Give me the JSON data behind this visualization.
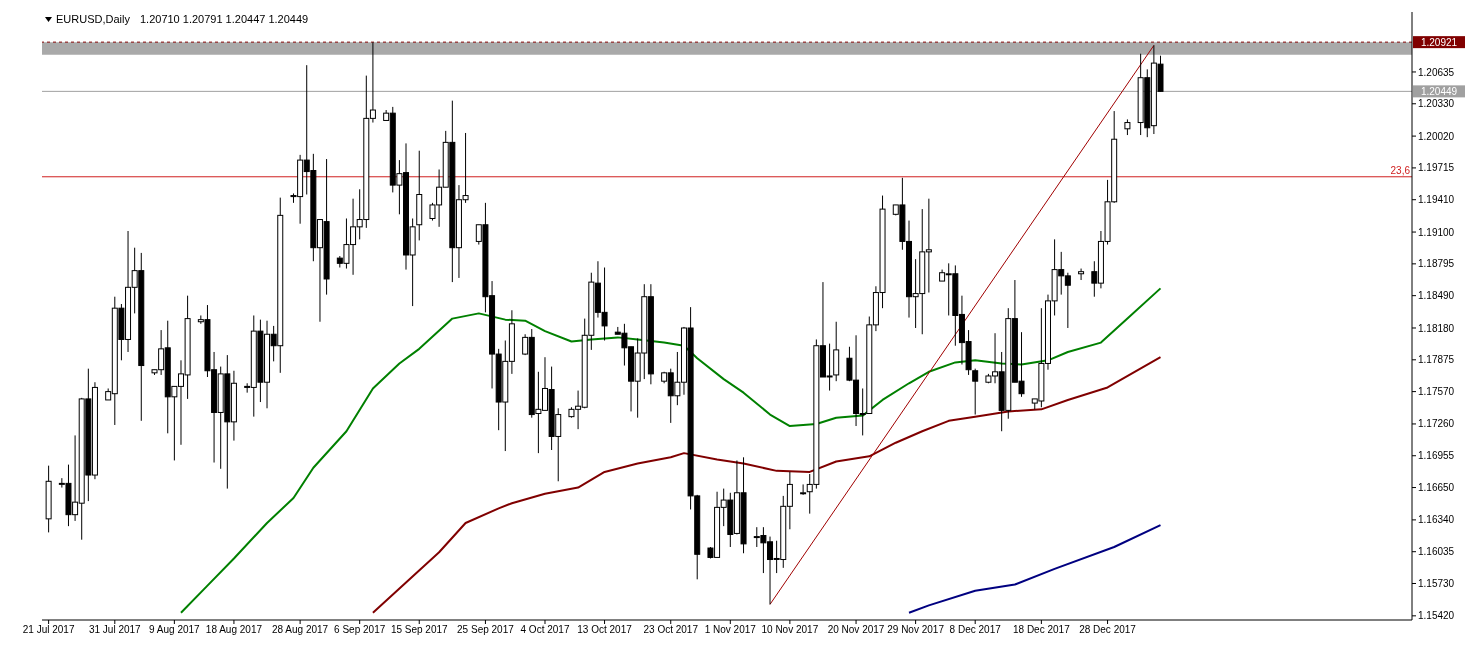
{
  "chart_data": {
    "type": "candlestick",
    "title": "EURUSD,Daily",
    "subtitle": "1.20710 1.20791 1.20447 1.20449",
    "color": "#000000",
    "x": [
      "2017-07-21",
      "2017-07-23",
      "2017-07-24",
      "2017-07-25",
      "2017-07-26",
      "2017-07-27",
      "2017-07-28",
      "2017-07-30",
      "2017-07-31",
      "2017-08-01",
      "2017-08-02",
      "2017-08-03",
      "2017-08-04",
      "2017-08-06",
      "2017-08-07",
      "2017-08-08",
      "2017-08-09",
      "2017-08-10",
      "2017-08-11",
      "2017-08-13",
      "2017-08-14",
      "2017-08-15",
      "2017-08-16",
      "2017-08-17",
      "2017-08-18",
      "2017-08-20",
      "2017-08-21",
      "2017-08-22",
      "2017-08-23",
      "2017-08-24",
      "2017-08-25",
      "2017-08-27",
      "2017-08-28",
      "2017-08-29",
      "2017-08-30",
      "2017-08-31",
      "2017-09-01",
      "2017-09-03",
      "2017-09-04",
      "2017-09-05",
      "2017-09-06",
      "2017-09-07",
      "2017-09-08",
      "2017-09-10",
      "2017-09-11",
      "2017-09-12",
      "2017-09-13",
      "2017-09-14",
      "2017-09-15",
      "2017-09-17",
      "2017-09-18",
      "2017-09-19",
      "2017-09-20",
      "2017-09-21",
      "2017-09-22",
      "2017-09-24",
      "2017-09-25",
      "2017-09-26",
      "2017-09-27",
      "2017-09-28",
      "2017-09-29",
      "2017-10-01",
      "2017-10-02",
      "2017-10-03",
      "2017-10-04",
      "2017-10-05",
      "2017-10-06",
      "2017-10-08",
      "2017-10-09",
      "2017-10-10",
      "2017-10-11",
      "2017-10-12",
      "2017-10-13",
      "2017-10-15",
      "2017-10-16",
      "2017-10-17",
      "2017-10-18",
      "2017-10-19",
      "2017-10-20",
      "2017-10-22",
      "2017-10-23",
      "2017-10-24",
      "2017-10-25",
      "2017-10-26",
      "2017-10-27",
      "2017-10-29",
      "2017-10-30",
      "2017-10-31",
      "2017-11-01",
      "2017-11-02",
      "2017-11-03",
      "2017-11-05",
      "2017-11-06",
      "2017-11-07",
      "2017-11-08",
      "2017-11-09",
      "2017-11-10",
      "2017-11-12",
      "2017-11-13",
      "2017-11-14",
      "2017-11-15",
      "2017-11-16",
      "2017-11-17",
      "2017-11-19",
      "2017-11-20",
      "2017-11-21",
      "2017-11-22",
      "2017-11-23",
      "2017-11-24",
      "2017-11-26",
      "2017-11-27",
      "2017-11-28",
      "2017-11-29",
      "2017-11-30",
      "2017-12-01",
      "2017-12-03",
      "2017-12-04",
      "2017-12-05",
      "2017-12-06",
      "2017-12-07",
      "2017-12-08",
      "2017-12-10",
      "2017-12-11",
      "2017-12-12",
      "2017-12-13",
      "2017-12-14",
      "2017-12-15",
      "2017-12-17",
      "2017-12-18",
      "2017-12-19",
      "2017-12-20",
      "2017-12-21",
      "2017-12-22",
      "2017-12-24",
      "2017-12-26",
      "2017-12-27",
      "2017-12-28",
      "2017-12-29",
      "2017-12-31",
      "2018-01-02",
      "2018-01-03",
      "2018-01-04",
      "2018-01-05"
    ],
    "ohlc": [
      [
        1.1635,
        1.1686,
        1.1622,
        1.1671
      ],
      [
        1.1669,
        1.1674,
        1.1665,
        1.1669
      ],
      [
        1.1669,
        1.1687,
        1.1628,
        1.1639
      ],
      [
        1.1639,
        1.1715,
        1.1633,
        1.1651
      ],
      [
        1.165,
        1.1751,
        1.1615,
        1.175
      ],
      [
        1.175,
        1.1779,
        1.1652,
        1.1677
      ],
      [
        1.1677,
        1.1766,
        1.1673,
        1.1761
      ],
      [
        1.1749,
        1.176,
        1.1749,
        1.1757
      ],
      [
        1.1755,
        1.1848,
        1.1725,
        1.1837
      ],
      [
        1.1837,
        1.1841,
        1.1787,
        1.1807
      ],
      [
        1.1807,
        1.1911,
        1.1795,
        1.1857
      ],
      [
        1.1857,
        1.1895,
        1.1832,
        1.1873
      ],
      [
        1.1873,
        1.189,
        1.1729,
        1.1782
      ],
      [
        1.1775,
        1.1778,
        1.1773,
        1.1778
      ],
      [
        1.1778,
        1.1816,
        1.1773,
        1.1798
      ],
      [
        1.1799,
        1.1825,
        1.1717,
        1.1752
      ],
      [
        1.1752,
        1.1762,
        1.1691,
        1.1762
      ],
      [
        1.1762,
        1.1787,
        1.1706,
        1.1774
      ],
      [
        1.1773,
        1.1849,
        1.175,
        1.1827
      ],
      [
        1.1824,
        1.183,
        1.1822,
        1.1826
      ],
      [
        1.1826,
        1.184,
        1.1771,
        1.1777
      ],
      [
        1.1778,
        1.1795,
        1.1689,
        1.1737
      ],
      [
        1.1737,
        1.1781,
        1.1683,
        1.1774
      ],
      [
        1.1774,
        1.1792,
        1.1664,
        1.1728
      ],
      [
        1.1728,
        1.1777,
        1.171,
        1.1765
      ],
      [
        1.1761,
        1.1765,
        1.1756,
        1.1762
      ],
      [
        1.1761,
        1.183,
        1.1733,
        1.1815
      ],
      [
        1.1815,
        1.1826,
        1.1747,
        1.1766
      ],
      [
        1.1766,
        1.1825,
        1.1741,
        1.1812
      ],
      [
        1.1812,
        1.182,
        1.1786,
        1.1801
      ],
      [
        1.1801,
        1.1943,
        1.1775,
        1.1926
      ],
      [
        1.1944,
        1.1947,
        1.1938,
        1.1945
      ],
      [
        1.1944,
        1.1984,
        1.1918,
        1.1979
      ],
      [
        1.1979,
        1.207,
        1.1946,
        1.1968
      ],
      [
        1.1969,
        1.1985,
        1.1882,
        1.1895
      ],
      [
        1.1895,
        1.1922,
        1.1824,
        1.1922
      ],
      [
        1.192,
        1.198,
        1.185,
        1.1865
      ],
      [
        1.1885,
        1.1887,
        1.1876,
        1.188
      ],
      [
        1.188,
        1.1923,
        1.1875,
        1.1898
      ],
      [
        1.1898,
        1.1942,
        1.1869,
        1.1915
      ],
      [
        1.1915,
        1.1951,
        1.1903,
        1.1922
      ],
      [
        1.1922,
        1.206,
        1.1914,
        1.2019
      ],
      [
        1.2019,
        1.2092,
        1.2015,
        1.2027
      ],
      [
        1.2017,
        1.2027,
        1.2017,
        1.2024
      ],
      [
        1.2024,
        1.203,
        1.1948,
        1.1955
      ],
      [
        1.1955,
        1.1979,
        1.1927,
        1.1966
      ],
      [
        1.1967,
        1.1995,
        1.1874,
        1.1888
      ],
      [
        1.1888,
        1.1923,
        1.1839,
        1.1915
      ],
      [
        1.1917,
        1.1988,
        1.1902,
        1.1946
      ],
      [
        1.1923,
        1.1938,
        1.1921,
        1.1936
      ],
      [
        1.1936,
        1.197,
        1.1915,
        1.1953
      ],
      [
        1.1953,
        1.2007,
        1.1953,
        1.1996
      ],
      [
        1.1996,
        1.2036,
        1.1862,
        1.1895
      ],
      [
        1.1895,
        1.1955,
        1.1866,
        1.1941
      ],
      [
        1.1941,
        1.2005,
        1.1938,
        1.1945
      ],
      [
        1.1901,
        1.1917,
        1.1898,
        1.1917
      ],
      [
        1.1917,
        1.1938,
        1.1833,
        1.1848
      ],
      [
        1.1849,
        1.1863,
        1.176,
        1.1793
      ],
      [
        1.1793,
        1.1798,
        1.172,
        1.1747
      ],
      [
        1.1747,
        1.1806,
        1.17,
        1.1786
      ],
      [
        1.1786,
        1.1835,
        1.1774,
        1.1822
      ],
      [
        1.1793,
        1.1812,
        1.1792,
        1.1809
      ],
      [
        1.1809,
        1.1817,
        1.1732,
        1.1735
      ],
      [
        1.1736,
        1.1776,
        1.1698,
        1.174
      ],
      [
        1.1739,
        1.179,
        1.1739,
        1.176
      ],
      [
        1.1759,
        1.1781,
        1.1701,
        1.1714
      ],
      [
        1.1714,
        1.1741,
        1.1671,
        1.1735
      ],
      [
        1.1733,
        1.1742,
        1.1732,
        1.174
      ],
      [
        1.174,
        1.1758,
        1.1721,
        1.1743
      ],
      [
        1.1742,
        1.1827,
        1.1741,
        1.1811
      ],
      [
        1.1811,
        1.1871,
        1.1797,
        1.1862
      ],
      [
        1.1861,
        1.1882,
        1.1828,
        1.1833
      ],
      [
        1.1833,
        1.1876,
        1.1806,
        1.182
      ],
      [
        1.1814,
        1.1819,
        1.1812,
        1.1812
      ],
      [
        1.1813,
        1.1822,
        1.1782,
        1.1799
      ],
      [
        1.18,
        1.18,
        1.1738,
        1.1767
      ],
      [
        1.1767,
        1.1808,
        1.1732,
        1.1794
      ],
      [
        1.1794,
        1.186,
        1.1769,
        1.1848
      ],
      [
        1.1848,
        1.186,
        1.1764,
        1.1774
      ],
      [
        1.1767,
        1.1776,
        1.1765,
        1.1775
      ],
      [
        1.1775,
        1.1779,
        1.1727,
        1.1753
      ],
      [
        1.1753,
        1.1795,
        1.1744,
        1.1766
      ],
      [
        1.1766,
        1.1819,
        1.1754,
        1.1818
      ],
      [
        1.1818,
        1.1838,
        1.1644,
        1.1657
      ],
      [
        1.1657,
        1.1658,
        1.1577,
        1.1601
      ],
      [
        1.1607,
        1.1608,
        1.1597,
        1.1598
      ],
      [
        1.1598,
        1.1661,
        1.1598,
        1.1646
      ],
      [
        1.1646,
        1.1664,
        1.1628,
        1.1653
      ],
      [
        1.1653,
        1.166,
        1.1608,
        1.162
      ],
      [
        1.1621,
        1.1691,
        1.162,
        1.166
      ],
      [
        1.166,
        1.1694,
        1.1602,
        1.1611
      ],
      [
        1.1618,
        1.1627,
        1.1608,
        1.1618
      ],
      [
        1.1619,
        1.1627,
        1.1583,
        1.1612
      ],
      [
        1.1613,
        1.1618,
        1.1553,
        1.1596
      ],
      [
        1.1597,
        1.1614,
        1.1583,
        1.1597
      ],
      [
        1.1596,
        1.1657,
        1.1588,
        1.1647
      ],
      [
        1.1647,
        1.168,
        1.1625,
        1.1668
      ],
      [
        1.166,
        1.1668,
        1.1658,
        1.166
      ],
      [
        1.1661,
        1.1678,
        1.164,
        1.1668
      ],
      [
        1.1668,
        1.1807,
        1.1664,
        1.1801
      ],
      [
        1.1801,
        1.1862,
        1.1771,
        1.1771
      ],
      [
        1.1772,
        1.1803,
        1.1758,
        1.1772
      ],
      [
        1.1773,
        1.1824,
        1.1767,
        1.1797
      ],
      [
        1.1789,
        1.18,
        1.1767,
        1.1768
      ],
      [
        1.1768,
        1.1811,
        1.1724,
        1.1736
      ],
      [
        1.1736,
        1.176,
        1.1715,
        1.1736
      ],
      [
        1.1736,
        1.1829,
        1.1736,
        1.1821
      ],
      [
        1.1821,
        1.1858,
        1.1815,
        1.1852
      ],
      [
        1.1852,
        1.1945,
        1.1837,
        1.1932
      ],
      [
        1.1927,
        1.1936,
        1.1926,
        1.1936
      ],
      [
        1.1936,
        1.1962,
        1.1893,
        1.1901
      ],
      [
        1.1901,
        1.1921,
        1.1828,
        1.1848
      ],
      [
        1.1848,
        1.1884,
        1.1818,
        1.1851
      ],
      [
        1.1851,
        1.1932,
        1.1812,
        1.1891
      ],
      [
        1.1891,
        1.1942,
        1.1852,
        1.1893
      ],
      [
        1.1863,
        1.1874,
        1.1863,
        1.1871
      ],
      [
        1.187,
        1.188,
        1.183,
        1.187
      ],
      [
        1.187,
        1.1878,
        1.1801,
        1.183
      ],
      [
        1.1831,
        1.1849,
        1.1783,
        1.1804
      ],
      [
        1.1805,
        1.1816,
        1.1773,
        1.1778
      ],
      [
        1.1777,
        1.1779,
        1.1735,
        1.1767
      ],
      [
        1.1766,
        1.1774,
        1.1765,
        1.1772
      ],
      [
        1.1772,
        1.1813,
        1.1765,
        1.1776
      ],
      [
        1.1776,
        1.1795,
        1.1719,
        1.1739
      ],
      [
        1.1739,
        1.1837,
        1.1731,
        1.1827
      ],
      [
        1.1827,
        1.1864,
        1.1766,
        1.1766
      ],
      [
        1.1767,
        1.1814,
        1.1752,
        1.1755
      ],
      [
        1.1746,
        1.175,
        1.174,
        1.175
      ],
      [
        1.1748,
        1.1837,
        1.1742,
        1.1784
      ],
      [
        1.1784,
        1.185,
        1.1778,
        1.1844
      ],
      [
        1.1844,
        1.1903,
        1.183,
        1.1874
      ],
      [
        1.1874,
        1.1891,
        1.185,
        1.1868
      ],
      [
        1.1868,
        1.1871,
        1.1818,
        1.1859
      ],
      [
        1.187,
        1.1875,
        1.1864,
        1.1872
      ],
      [
        1.1872,
        1.1882,
        1.1848,
        1.1861
      ],
      [
        1.1861,
        1.1911,
        1.1856,
        1.1901
      ],
      [
        1.1901,
        1.196,
        1.1898,
        1.1939
      ],
      [
        1.1939,
        1.2026,
        1.1938,
        1.1999
      ],
      [
        1.2009,
        1.2018,
        1.2003,
        1.2015
      ],
      [
        1.2015,
        1.2081,
        1.2003,
        1.2058
      ],
      [
        1.2058,
        1.2066,
        1.2001,
        1.201
      ],
      [
        1.2012,
        1.2089,
        1.2004,
        1.2072
      ],
      [
        1.2071,
        1.20791,
        1.20447,
        1.20449
      ]
    ],
    "series": [
      {
        "type": "line",
        "color": "#008000",
        "x": [
          "2017-08-10",
          "2017-08-14",
          "2017-08-18",
          "2017-08-23",
          "2017-08-27",
          "2017-08-30",
          "2017-09-04",
          "2017-09-08",
          "2017-09-12",
          "2017-09-15",
          "2017-09-20",
          "2017-09-24",
          "2017-09-28",
          "2017-10-01",
          "2017-10-04",
          "2017-10-08",
          "2017-10-11",
          "2017-10-15",
          "2017-10-18",
          "2017-10-22",
          "2017-10-25",
          "2017-10-27",
          "2017-10-31",
          "2017-11-03",
          "2017-11-07",
          "2017-11-10",
          "2017-11-14",
          "2017-11-17",
          "2017-11-21",
          "2017-11-24",
          "2017-11-28",
          "2017-12-01",
          "2017-12-05",
          "2017-12-08",
          "2017-12-12",
          "2017-12-15",
          "2017-12-19",
          "2017-12-22",
          "2017-12-27",
          "2017-12-31",
          "2018-01-05"
        ],
        "values": [
          1.1545,
          1.1571,
          1.1597,
          1.1631,
          1.1655,
          1.1684,
          1.1719,
          1.176,
          1.1784,
          1.1798,
          1.1827,
          1.1832,
          1.1826,
          1.1825,
          1.1815,
          1.1805,
          1.1807,
          1.1809,
          1.1807,
          1.1804,
          1.1801,
          1.1789,
          1.1769,
          1.1756,
          1.1735,
          1.1724,
          1.1726,
          1.1732,
          1.1734,
          1.1749,
          1.1765,
          1.1776,
          1.1785,
          1.1787,
          1.1784,
          1.1783,
          1.1787,
          1.1795,
          1.1804,
          1.1827,
          1.1856
        ]
      },
      {
        "type": "line",
        "color": "#800000",
        "x": [
          "2017-09-08",
          "2017-09-13",
          "2017-09-18",
          "2017-09-22",
          "2017-09-27",
          "2017-09-29",
          "2017-10-04",
          "2017-10-09",
          "2017-10-13",
          "2017-10-18",
          "2017-10-23",
          "2017-10-25",
          "2017-10-30",
          "2017-11-03",
          "2017-11-08",
          "2017-11-13",
          "2017-11-17",
          "2017-11-22",
          "2017-11-26",
          "2017-11-30",
          "2017-12-04",
          "2017-12-08",
          "2017-12-13",
          "2017-12-18",
          "2017-12-22",
          "2017-12-28",
          "2018-01-05"
        ],
        "values": [
          1.1545,
          1.1574,
          1.1603,
          1.1631,
          1.1645,
          1.165,
          1.1659,
          1.1665,
          1.168,
          1.1688,
          1.1694,
          1.1698,
          1.1692,
          1.1688,
          1.1681,
          1.168,
          1.169,
          1.1695,
          1.1708,
          1.1719,
          1.1729,
          1.1733,
          1.1738,
          1.174,
          1.1749,
          1.1761,
          1.179
        ]
      },
      {
        "type": "line",
        "color": "#000080",
        "x": [
          "2017-11-28",
          "2017-12-01",
          "2017-12-08",
          "2017-12-14",
          "2017-12-20",
          "2017-12-29",
          "2018-01-05"
        ],
        "values": [
          1.1545,
          1.1552,
          1.1566,
          1.1572,
          1.1587,
          1.1608,
          1.1629
        ]
      },
      {
        "type": "line",
        "color": "#a00000",
        "x": [
          "2017-11-07",
          "2018-01-04"
        ],
        "values": [
          1.1553,
          1.2089
        ]
      }
    ],
    "xlim": [
      "2017-07-20",
      "2018-02-12"
    ],
    "xticks": [
      {
        "value": "2017-07-21",
        "label": "21 Jul 2017"
      },
      {
        "value": "2017-07-31",
        "label": "31 Jul 2017"
      },
      {
        "value": "2017-08-09",
        "label": "9 Aug 2017"
      },
      {
        "value": "2017-08-18",
        "label": "18 Aug 2017"
      },
      {
        "value": "2017-08-28",
        "label": "28 Aug 2017"
      },
      {
        "value": "2017-09-06",
        "label": "6 Sep 2017"
      },
      {
        "value": "2017-09-15",
        "label": "15 Sep 2017"
      },
      {
        "value": "2017-09-25",
        "label": "25 Sep 2017"
      },
      {
        "value": "2017-10-04",
        "label": "4 Oct 2017"
      },
      {
        "value": "2017-10-13",
        "label": "13 Oct 2017"
      },
      {
        "value": "2017-10-23",
        "label": "23 Oct 2017"
      },
      {
        "value": "2017-11-01",
        "label": "1 Nov 2017"
      },
      {
        "value": "2017-11-10",
        "label": "10 Nov 2017"
      },
      {
        "value": "2017-11-20",
        "label": "20 Nov 2017"
      },
      {
        "value": "2017-11-29",
        "label": "29 Nov 2017"
      },
      {
        "value": "2017-12-08",
        "label": "8 Dec 2017"
      },
      {
        "value": "2017-12-18",
        "label": "18 Dec 2017"
      },
      {
        "value": "2017-12-28",
        "label": "28 Dec 2017"
      }
    ],
    "ylim": [
      1.1538,
      1.2121
    ],
    "yticks": [
      {
        "value": 1.1542,
        "label": "1.15420"
      },
      {
        "value": 1.1573,
        "label": "1.15730"
      },
      {
        "value": 1.16035,
        "label": "1.16035"
      },
      {
        "value": 1.1634,
        "label": "1.16340"
      },
      {
        "value": 1.1665,
        "label": "1.16650"
      },
      {
        "value": 1.16955,
        "label": "1.16955"
      },
      {
        "value": 1.1726,
        "label": "1.17260"
      },
      {
        "value": 1.1757,
        "label": "1.17570"
      },
      {
        "value": 1.17875,
        "label": "1.17875"
      },
      {
        "value": 1.1818,
        "label": "1.18180"
      },
      {
        "value": 1.1849,
        "label": "1.18490"
      },
      {
        "value": 1.18795,
        "label": "1.18795"
      },
      {
        "value": 1.191,
        "label": "1.19100"
      },
      {
        "value": 1.1941,
        "label": "1.19410"
      },
      {
        "value": 1.19715,
        "label": "1.19715"
      },
      {
        "value": 1.2002,
        "label": "1.20020"
      },
      {
        "value": 1.2033,
        "label": "1.20330"
      },
      {
        "value": 1.20635,
        "label": "1.20635"
      }
    ],
    "bands": [
      {
        "axis": "y",
        "from": 1.208,
        "to": 1.2092,
        "color": "#a9a9a9"
      }
    ],
    "ref_lines": [
      {
        "axis": "y",
        "value": 1.20921,
        "label": "1.20921",
        "color": "#800000",
        "line_style": "dashed"
      },
      {
        "axis": "y",
        "value": 1.20449,
        "label": "1.20449",
        "color": "#a0a0a0",
        "line_style": "solid"
      },
      {
        "axis": "y",
        "value": 1.1963,
        "color": "#d02020",
        "line_style": "solid"
      }
    ],
    "annotations": [
      {
        "text": "23,6",
        "x": "2018-02-12",
        "y": 1.1963
      }
    ]
  }
}
